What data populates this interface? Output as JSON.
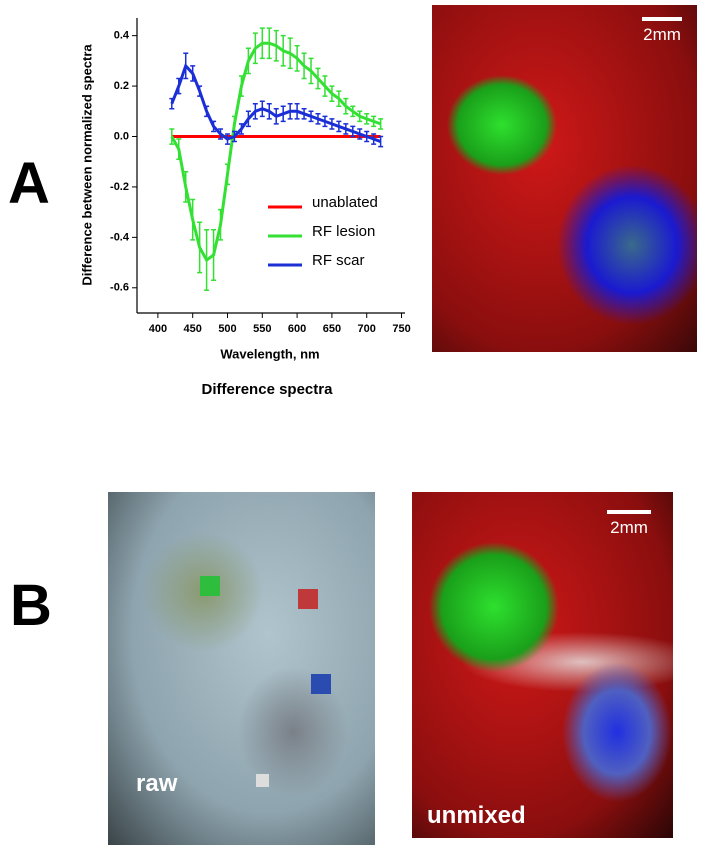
{
  "chart_data": {
    "type": "line",
    "x": [
      420,
      430,
      440,
      450,
      460,
      470,
      480,
      490,
      500,
      510,
      520,
      530,
      540,
      550,
      560,
      570,
      580,
      590,
      600,
      610,
      620,
      630,
      640,
      650,
      660,
      670,
      680,
      690,
      700,
      710,
      720
    ],
    "series": [
      {
        "name": "unablated",
        "color": "#ff0000",
        "values": [
          0,
          0,
          0,
          0,
          0,
          0,
          0,
          0,
          0,
          0,
          0,
          0,
          0,
          0,
          0,
          0,
          0,
          0,
          0,
          0,
          0,
          0,
          0,
          0,
          0,
          0,
          0,
          0,
          0,
          0,
          0
        ]
      },
      {
        "name": "RF lesion",
        "color": "#33e033",
        "values": [
          0.0,
          -0.05,
          -0.2,
          -0.33,
          -0.44,
          -0.49,
          -0.47,
          -0.35,
          -0.15,
          0.05,
          0.2,
          0.3,
          0.35,
          0.37,
          0.37,
          0.36,
          0.34,
          0.33,
          0.31,
          0.28,
          0.26,
          0.23,
          0.2,
          0.17,
          0.15,
          0.12,
          0.1,
          0.08,
          0.07,
          0.06,
          0.05
        ],
        "errors": [
          0.03,
          0.04,
          0.06,
          0.08,
          0.1,
          0.12,
          0.1,
          0.06,
          0.04,
          0.03,
          0.04,
          0.05,
          0.06,
          0.06,
          0.06,
          0.06,
          0.06,
          0.06,
          0.05,
          0.05,
          0.05,
          0.04,
          0.04,
          0.03,
          0.03,
          0.03,
          0.02,
          0.02,
          0.02,
          0.02,
          0.02
        ]
      },
      {
        "name": "RF scar",
        "color": "#1a2fd6",
        "values": [
          0.13,
          0.2,
          0.28,
          0.25,
          0.18,
          0.1,
          0.04,
          0.01,
          -0.01,
          0.0,
          0.03,
          0.07,
          0.1,
          0.11,
          0.1,
          0.08,
          0.09,
          0.1,
          0.1,
          0.09,
          0.08,
          0.07,
          0.06,
          0.05,
          0.04,
          0.03,
          0.02,
          0.01,
          0.0,
          -0.01,
          -0.02
        ],
        "errors": [
          0.02,
          0.03,
          0.05,
          0.03,
          0.02,
          0.02,
          0.02,
          0.02,
          0.02,
          0.02,
          0.02,
          0.03,
          0.03,
          0.03,
          0.03,
          0.03,
          0.03,
          0.03,
          0.03,
          0.02,
          0.02,
          0.02,
          0.02,
          0.02,
          0.02,
          0.02,
          0.02,
          0.02,
          0.02,
          0.02,
          0.02
        ]
      }
    ],
    "xlim": [
      370,
      755
    ],
    "xticks": [
      400,
      450,
      500,
      550,
      600,
      650,
      700,
      750
    ],
    "ylim": [
      -0.7,
      0.47
    ],
    "yticks": [
      -0.6,
      -0.4,
      -0.2,
      {
        "value": 0,
        "label": "0.0"
      },
      0.2,
      0.4
    ],
    "xlabel": "Wavelength, nm",
    "ylabel": "Difference between normalized spectra",
    "caption": "Difference spectra"
  },
  "panels": {
    "a": "A",
    "b": "B"
  },
  "images": {
    "scale": "2mm",
    "raw": "raw",
    "unmixed": "unmixed"
  }
}
